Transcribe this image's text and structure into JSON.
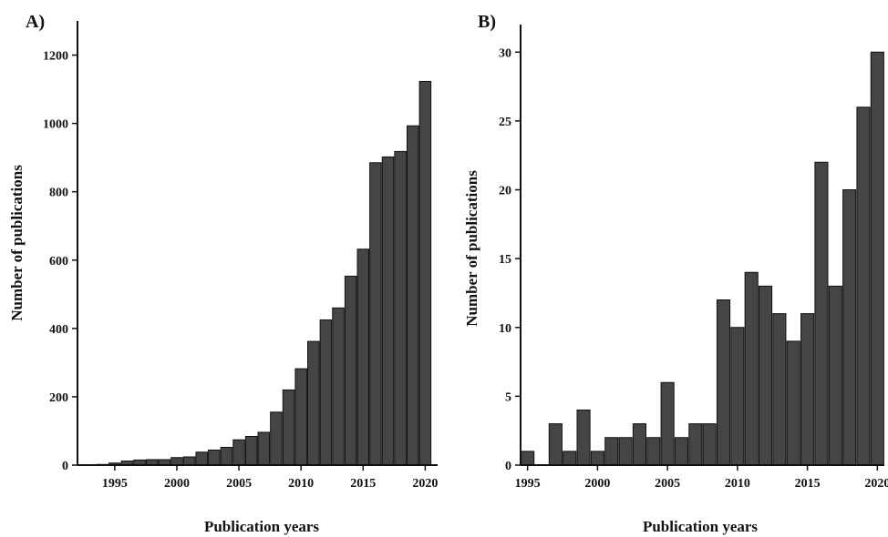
{
  "chart_data": [
    {
      "panel_label": "A)",
      "type": "bar",
      "xlabel": "Publication years",
      "ylabel": "Number of publications",
      "x": [
        1994,
        1995,
        1996,
        1997,
        1998,
        1999,
        2000,
        2001,
        2002,
        2003,
        2004,
        2005,
        2006,
        2007,
        2008,
        2009,
        2010,
        2011,
        2012,
        2013,
        2014,
        2015,
        2016,
        2017,
        2018,
        2019,
        2020
      ],
      "values": [
        2,
        6,
        12,
        15,
        16,
        16,
        22,
        24,
        38,
        44,
        52,
        74,
        84,
        96,
        155,
        220,
        282,
        362,
        425,
        460,
        553,
        632,
        885,
        902,
        918,
        993,
        1123
      ],
      "xlim": [
        1992,
        2021
      ],
      "ylim": [
        0,
        1300
      ],
      "xticks": [
        "1995",
        "2000",
        "2005",
        "2010",
        "2015",
        "2020"
      ],
      "yticks": [
        "0",
        "200",
        "400",
        "600",
        "800",
        "1000",
        "1200"
      ]
    },
    {
      "panel_label": "B)",
      "type": "bar",
      "xlabel": "Publication years",
      "ylabel": "Number of publications",
      "x": [
        1995,
        1997,
        1998,
        1999,
        2000,
        2001,
        2002,
        2003,
        2004,
        2005,
        2006,
        2007,
        2008,
        2009,
        2010,
        2011,
        2012,
        2013,
        2014,
        2015,
        2016,
        2017,
        2018,
        2019,
        2020
      ],
      "values": [
        1,
        3,
        1,
        4,
        1,
        2,
        2,
        3,
        2,
        6,
        2,
        3,
        3,
        12,
        10,
        14,
        13,
        11,
        9,
        11,
        22,
        13,
        20,
        26,
        30
      ],
      "xlim": [
        1994.5,
        2020.5
      ],
      "ylim": [
        0,
        32
      ],
      "xticks": [
        "1995",
        "2000",
        "2005",
        "2010",
        "2015",
        "2020"
      ],
      "yticks": [
        "0",
        "5",
        "10",
        "15",
        "20",
        "25",
        "30"
      ]
    }
  ]
}
